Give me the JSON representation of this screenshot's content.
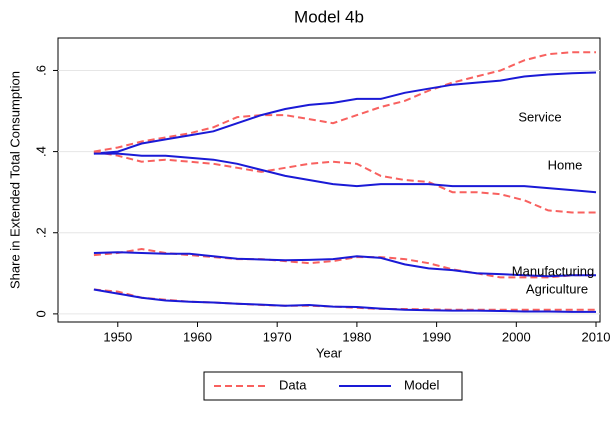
{
  "chart_data": {
    "type": "line",
    "title": "Model 4b",
    "xlabel": "Year",
    "ylabel": "Share in Extended Total Consumption",
    "x": [
      1947,
      1950,
      1953,
      1956,
      1959,
      1962,
      1965,
      1968,
      1971,
      1974,
      1977,
      1980,
      1983,
      1986,
      1989,
      1992,
      1995,
      1998,
      2001,
      2004,
      2007,
      2010
    ],
    "series": [
      {
        "name": "Data",
        "color": "#f8615f",
        "dashed": true,
        "values": [
          0.4,
          0.41,
          0.425,
          0.435,
          0.445,
          0.46,
          0.485,
          0.49,
          0.49,
          0.48,
          0.47,
          0.49,
          0.51,
          0.525,
          0.55,
          0.57,
          0.585,
          0.6,
          0.625,
          0.64,
          0.645,
          0.645
        ]
      },
      {
        "name": "Model",
        "color": "#1a1ad6",
        "dashed": false,
        "values": [
          0.395,
          0.4,
          0.42,
          0.43,
          0.44,
          0.45,
          0.47,
          0.49,
          0.505,
          0.515,
          0.52,
          0.53,
          0.53,
          0.545,
          0.555,
          0.565,
          0.57,
          0.575,
          0.585,
          0.59,
          0.593,
          0.595
        ]
      },
      {
        "name": "Data",
        "color": "#f8615f",
        "dashed": true,
        "values": [
          0.4,
          0.39,
          0.375,
          0.38,
          0.375,
          0.37,
          0.36,
          0.35,
          0.36,
          0.37,
          0.375,
          0.37,
          0.34,
          0.33,
          0.325,
          0.3,
          0.3,
          0.295,
          0.28,
          0.255,
          0.25,
          0.25
        ]
      },
      {
        "name": "Model",
        "color": "#1a1ad6",
        "dashed": false,
        "values": [
          0.395,
          0.395,
          0.39,
          0.39,
          0.385,
          0.38,
          0.37,
          0.355,
          0.34,
          0.33,
          0.32,
          0.315,
          0.32,
          0.32,
          0.32,
          0.315,
          0.315,
          0.315,
          0.315,
          0.31,
          0.305,
          0.3
        ]
      },
      {
        "name": "Data",
        "color": "#f8615f",
        "dashed": true,
        "values": [
          0.145,
          0.15,
          0.16,
          0.15,
          0.145,
          0.14,
          0.135,
          0.135,
          0.13,
          0.125,
          0.13,
          0.14,
          0.14,
          0.135,
          0.125,
          0.11,
          0.1,
          0.09,
          0.09,
          0.09,
          0.095,
          0.095
        ]
      },
      {
        "name": "Model",
        "color": "#1a1ad6",
        "dashed": false,
        "values": [
          0.15,
          0.152,
          0.15,
          0.148,
          0.148,
          0.142,
          0.136,
          0.134,
          0.132,
          0.133,
          0.135,
          0.142,
          0.138,
          0.122,
          0.112,
          0.108,
          0.1,
          0.098,
          0.095,
          0.093,
          0.095,
          0.095
        ]
      },
      {
        "name": "Data",
        "color": "#f8615f",
        "dashed": true,
        "values": [
          0.06,
          0.055,
          0.04,
          0.035,
          0.03,
          0.028,
          0.025,
          0.022,
          0.02,
          0.02,
          0.018,
          0.015,
          0.012,
          0.012,
          0.011,
          0.01,
          0.01,
          0.01,
          0.01,
          0.01,
          0.01,
          0.01
        ]
      },
      {
        "name": "Model",
        "color": "#1a1ad6",
        "dashed": false,
        "values": [
          0.06,
          0.05,
          0.04,
          0.033,
          0.03,
          0.028,
          0.025,
          0.023,
          0.02,
          0.022,
          0.018,
          0.017,
          0.013,
          0.01,
          0.009,
          0.008,
          0.008,
          0.007,
          0.006,
          0.006,
          0.005,
          0.005
        ]
      }
    ],
    "annotations": [
      "Service",
      "Home",
      "Manufacturing",
      "Agriculture"
    ],
    "xlim": [
      1942.5,
      2010.5
    ],
    "xticks": [
      1950,
      1960,
      1970,
      1980,
      1990,
      2000,
      2010
    ],
    "ylim": [
      -0.02,
      0.68
    ],
    "yticks": [
      0,
      {
        "value": 0.2,
        "label": ".2"
      },
      {
        "value": 0.4,
        "label": ".4"
      },
      {
        "value": 0.6,
        "label": ".6"
      }
    ],
    "grid": true
  }
}
